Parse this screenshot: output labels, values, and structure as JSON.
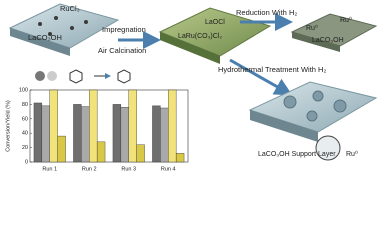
{
  "labels": {
    "precursor": "RuCl₃",
    "support": "LaCO₃OH",
    "step1a": "Impregnation",
    "step1b": "Air Calcination",
    "mid1": "LaOCl",
    "mid2": "LaRu(CO₃)Cl₂",
    "step2": "Reduction With H₂",
    "ru0a": "Ru⁰",
    "ru0b": "Ru⁰",
    "product1": "LaCO₃OH",
    "step3": "Hydrothermal Treatment With H₂",
    "layer": "LaCO₃OH Support Layer",
    "ru0c": "Ru⁰"
  },
  "chart_data": {
    "type": "bar",
    "y_label": "Conversion/Yield (%)",
    "categories": [
      "Run 1",
      "Run 2",
      "Run 3",
      "Run 4"
    ],
    "series": [
      {
        "color": "#6f6f6f",
        "values": [
          82,
          80,
          80,
          78
        ]
      },
      {
        "color": "#a9a9a9",
        "values": [
          78,
          77,
          76,
          75
        ]
      },
      {
        "color": "#f2e27a",
        "values": [
          100,
          100,
          100,
          100
        ]
      },
      {
        "color": "#d8c846",
        "values": [
          36,
          28,
          24,
          12
        ]
      }
    ],
    "ylim": [
      0,
      100
    ],
    "yticks": [
      0,
      20,
      40,
      60,
      80,
      100
    ]
  }
}
